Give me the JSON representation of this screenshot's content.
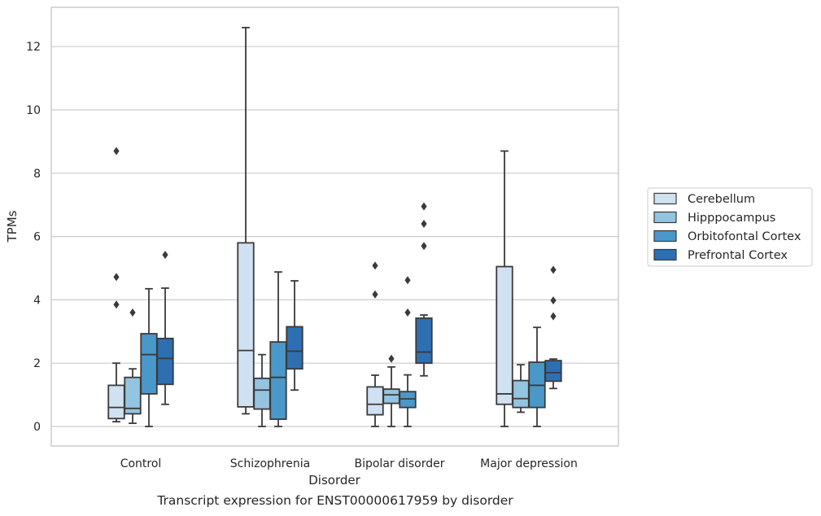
{
  "caption": "Transcript expression for ENST00000617959 by disorder",
  "chart_data": {
    "type": "box",
    "title": "",
    "xlabel": "Disorder",
    "ylabel": "TPMs",
    "ylim": [
      -0.6,
      13.2
    ],
    "yticks": [
      0,
      2,
      4,
      6,
      8,
      10,
      12
    ],
    "grid": "horizontal",
    "legend_position": "right",
    "categories": [
      "Control",
      "Schizophrenia",
      "Bipolar disorder",
      "Major depression"
    ],
    "series": [
      {
        "name": "Cerebellum",
        "color": "#d0e1f2",
        "boxes": [
          {
            "whislo": 0.15,
            "q1": 0.25,
            "med": 0.6,
            "q3": 1.3,
            "whishi": 2.0,
            "fliers": [
              3.85,
              4.72,
              8.7
            ]
          },
          {
            "whislo": 0.4,
            "q1": 0.62,
            "med": 2.4,
            "q3": 5.8,
            "whishi": 12.6,
            "fliers": []
          },
          {
            "whislo": 0.0,
            "q1": 0.37,
            "med": 0.7,
            "q3": 1.25,
            "whishi": 1.62,
            "fliers": [
              4.17,
              5.08
            ]
          },
          {
            "whislo": 0.0,
            "q1": 0.7,
            "med": 1.03,
            "q3": 5.05,
            "whishi": 8.7,
            "fliers": []
          }
        ]
      },
      {
        "name": "Hipppocampus",
        "color": "#94c4df",
        "boxes": [
          {
            "whislo": 0.1,
            "q1": 0.4,
            "med": 0.57,
            "q3": 1.55,
            "whishi": 1.82,
            "fliers": [
              3.6
            ]
          },
          {
            "whislo": 0.0,
            "q1": 0.55,
            "med": 1.15,
            "q3": 1.52,
            "whishi": 2.27,
            "fliers": []
          },
          {
            "whislo": 0.0,
            "q1": 0.73,
            "med": 1.0,
            "q3": 1.18,
            "whishi": 1.88,
            "fliers": [
              2.14
            ]
          },
          {
            "whislo": 0.45,
            "q1": 0.6,
            "med": 0.88,
            "q3": 1.45,
            "whishi": 1.95,
            "fliers": []
          }
        ]
      },
      {
        "name": "Orbitofontal Cortex",
        "color": "#4a98c9",
        "boxes": [
          {
            "whislo": 0.0,
            "q1": 1.03,
            "med": 2.27,
            "q3": 2.93,
            "whishi": 4.35,
            "fliers": []
          },
          {
            "whislo": 0.0,
            "q1": 0.23,
            "med": 1.55,
            "q3": 2.67,
            "whishi": 4.88,
            "fliers": []
          },
          {
            "whislo": 0.0,
            "q1": 0.6,
            "med": 0.87,
            "q3": 1.1,
            "whishi": 1.63,
            "fliers": [
              3.6,
              4.62
            ]
          },
          {
            "whislo": 0.0,
            "q1": 0.6,
            "med": 1.3,
            "q3": 2.03,
            "whishi": 3.13,
            "fliers": []
          }
        ]
      },
      {
        "name": "Prefrontal Cortex",
        "color": "#2e6fb2",
        "boxes": [
          {
            "whislo": 0.7,
            "q1": 1.33,
            "med": 2.15,
            "q3": 2.78,
            "whishi": 4.37,
            "fliers": [
              5.42
            ]
          },
          {
            "whislo": 1.15,
            "q1": 1.82,
            "med": 2.38,
            "q3": 3.15,
            "whishi": 4.6,
            "fliers": []
          },
          {
            "whislo": 1.6,
            "q1": 2.0,
            "med": 2.35,
            "q3": 3.42,
            "whishi": 3.52,
            "fliers": [
              5.7,
              6.4,
              6.95
            ]
          },
          {
            "whislo": 1.2,
            "q1": 1.43,
            "med": 1.7,
            "q3": 2.08,
            "whishi": 2.13,
            "fliers": [
              3.48,
              3.98,
              4.95
            ]
          }
        ]
      }
    ]
  }
}
